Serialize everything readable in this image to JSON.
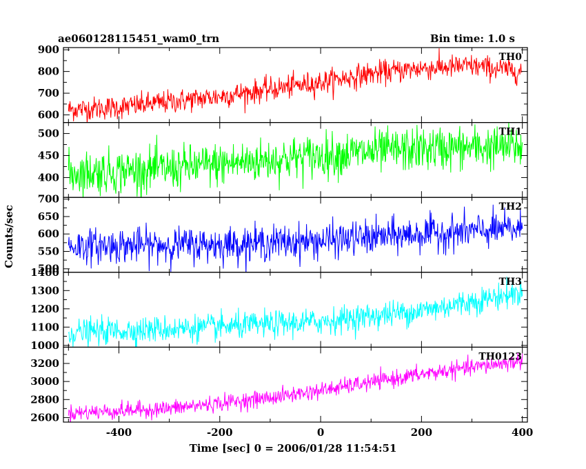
{
  "header": {
    "title": "ae060128115451_wam0_trn",
    "bin_time": "Bin time: 1.0 s"
  },
  "chart_data": {
    "type": "line",
    "xlabel": "Time [sec] 0 = 2006/01/28 11:54:51",
    "ylabel": "Counts/sec",
    "xlim": [
      -510,
      410
    ],
    "x_ticks": [
      -400,
      -200,
      0,
      200,
      400
    ],
    "bin_time_s": 1.0,
    "panels": [
      {
        "name": "TH0",
        "color": "#ff0000",
        "ylim": [
          565,
          910
        ],
        "y_ticks": [
          600,
          700,
          800,
          900
        ],
        "trend": [
          {
            "x": -500,
            "y": 625
          },
          {
            "x": -400,
            "y": 635
          },
          {
            "x": -200,
            "y": 685
          },
          {
            "x": 0,
            "y": 750
          },
          {
            "x": 100,
            "y": 790
          },
          {
            "x": 200,
            "y": 815
          },
          {
            "x": 300,
            "y": 825
          },
          {
            "x": 400,
            "y": 800
          }
        ],
        "noise_amplitude": 60
      },
      {
        "name": "TH1",
        "color": "#00ff00",
        "ylim": [
          355,
          525
        ],
        "y_ticks": [
          400,
          450,
          500
        ],
        "trend": [
          {
            "x": -500,
            "y": 410
          },
          {
            "x": -300,
            "y": 420
          },
          {
            "x": -100,
            "y": 440
          },
          {
            "x": 0,
            "y": 450
          },
          {
            "x": 200,
            "y": 465
          },
          {
            "x": 400,
            "y": 470
          }
        ],
        "noise_amplitude": 55
      },
      {
        "name": "TH2",
        "color": "#0000ff",
        "ylim": [
          490,
          705
        ],
        "y_ticks": [
          500,
          550,
          600,
          650,
          700
        ],
        "trend": [
          {
            "x": -500,
            "y": 565
          },
          {
            "x": -200,
            "y": 570
          },
          {
            "x": 0,
            "y": 580
          },
          {
            "x": 200,
            "y": 600
          },
          {
            "x": 400,
            "y": 615
          }
        ],
        "noise_amplitude": 55
      },
      {
        "name": "TH3",
        "color": "#00ffff",
        "ylim": [
          990,
          1400
        ],
        "y_ticks": [
          1000,
          1100,
          1200,
          1300,
          1400
        ],
        "trend": [
          {
            "x": -500,
            "y": 1070
          },
          {
            "x": -200,
            "y": 1100
          },
          {
            "x": 0,
            "y": 1130
          },
          {
            "x": 200,
            "y": 1190
          },
          {
            "x": 400,
            "y": 1290
          }
        ],
        "noise_amplitude": 80
      },
      {
        "name": "TH0123",
        "color": "#ff00ff",
        "ylim": [
          2550,
          3380
        ],
        "y_ticks": [
          2600,
          2800,
          3000,
          3200
        ],
        "trend": [
          {
            "x": -500,
            "y": 2650
          },
          {
            "x": -300,
            "y": 2700
          },
          {
            "x": -100,
            "y": 2820
          },
          {
            "x": 0,
            "y": 2900
          },
          {
            "x": 200,
            "y": 3080
          },
          {
            "x": 400,
            "y": 3230
          }
        ],
        "noise_amplitude": 100
      }
    ]
  }
}
